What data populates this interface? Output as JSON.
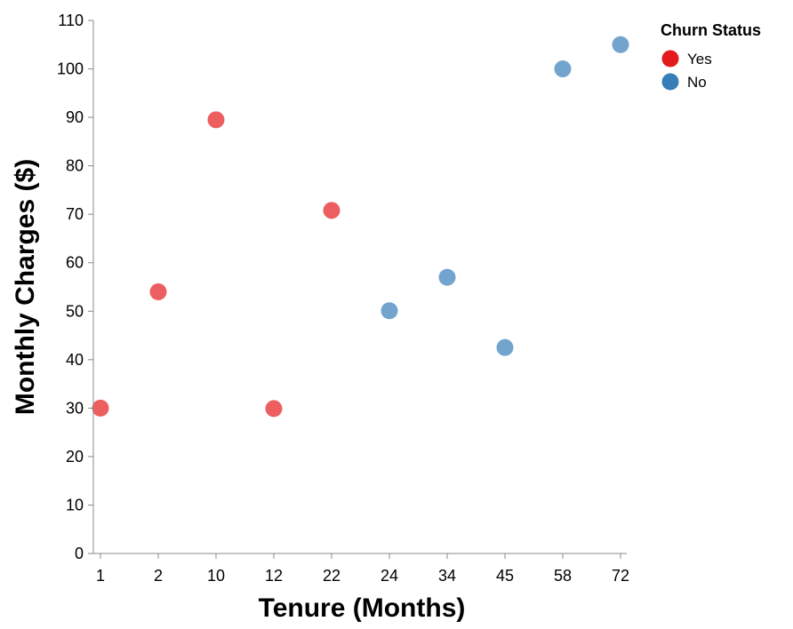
{
  "chart_data": {
    "type": "scatter",
    "xlabel": "Tenure (Months)",
    "ylabel": "Monthly Charges ($)",
    "x_categories": [
      "1",
      "2",
      "10",
      "12",
      "22",
      "24",
      "34",
      "45",
      "58",
      "72"
    ],
    "ylim": [
      0,
      110
    ],
    "y_ticks": [
      0,
      10,
      20,
      30,
      40,
      50,
      60,
      70,
      80,
      90,
      100,
      110
    ],
    "grid": false,
    "legend": {
      "title": "Churn Status",
      "placement": "top-right",
      "entries": [
        {
          "label": "Yes",
          "color": "#e41a1c"
        },
        {
          "label": "No",
          "color": "#377eb8"
        }
      ]
    },
    "series": [
      {
        "name": "Yes",
        "color": "#e41a1c",
        "points": [
          {
            "x": "1",
            "y": 30
          },
          {
            "x": "2",
            "y": 54
          },
          {
            "x": "10",
            "y": 89.5
          },
          {
            "x": "12",
            "y": 29.9
          },
          {
            "x": "22",
            "y": 70.8
          }
        ]
      },
      {
        "name": "No",
        "color": "#377eb8",
        "points": [
          {
            "x": "24",
            "y": 50.1
          },
          {
            "x": "34",
            "y": 57
          },
          {
            "x": "45",
            "y": 42.5
          },
          {
            "x": "58",
            "y": 100
          },
          {
            "x": "72",
            "y": 105
          }
        ]
      }
    ]
  }
}
